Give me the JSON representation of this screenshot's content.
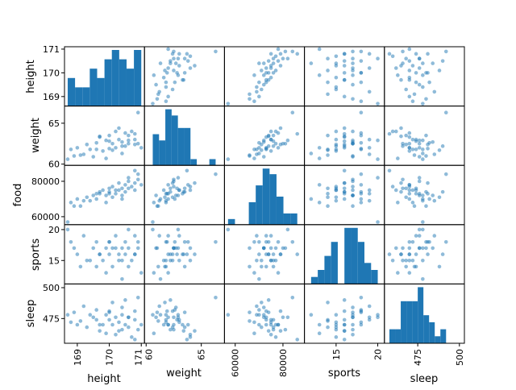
{
  "chart_data": {
    "type": "scatter",
    "title": "",
    "kind": "scatter_matrix",
    "diagonal": "hist",
    "hist_bins": 10,
    "grid": false,
    "color": "#1f77b4",
    "point_alpha": 0.5,
    "variables": [
      "height",
      "weight",
      "food",
      "sports",
      "sleep"
    ],
    "ranges": {
      "height": [
        168.6,
        171.1
      ],
      "weight": [
        59.85,
        67.1
      ],
      "food": [
        55500,
        89000
      ],
      "sports": [
        11.2,
        20.8
      ],
      "sleep": [
        455,
        503
      ]
    },
    "ticks": {
      "height": [
        169,
        170,
        171
      ],
      "weight": [
        60,
        65
      ],
      "food": [
        60000,
        80000
      ],
      "sports": [
        15,
        20
      ],
      "sleep": [
        475,
        500
      ]
    },
    "data": {
      "height": [
        168.7,
        168.8,
        168.9,
        169.0,
        169.2,
        169.3,
        169.5,
        169.6,
        169.6,
        169.7,
        169.8,
        169.9,
        169.9,
        170.0,
        170.0,
        170.1,
        170.1,
        170.2,
        170.3,
        170.3,
        170.4,
        170.4,
        170.5,
        170.5,
        170.6,
        170.6,
        170.7,
        170.8,
        170.8,
        170.9,
        170.9,
        171.0,
        169.4,
        169.7,
        170.2,
        170.6,
        169.1,
        170.0,
        170.4,
        170.8
      ],
      "weight": [
        60.6,
        61.8,
        61.0,
        62.0,
        61.2,
        62.4,
        60.9,
        61.8,
        62.6,
        63.4,
        61.6,
        62.9,
        60.7,
        62.8,
        63.5,
        61.7,
        62.5,
        62.0,
        64.4,
        63.0,
        62.7,
        61.3,
        63.8,
        62.2,
        63.5,
        62.5,
        64.0,
        63.0,
        62.4,
        66.3,
        62.5,
        62.0,
        61.8,
        63.3,
        64.0,
        62.9,
        61.1,
        61.9,
        62.2,
        63.7
      ],
      "food": [
        57000,
        68000,
        66000,
        70000,
        69000,
        71000,
        72000,
        73000,
        70000,
        74000,
        75000,
        72000,
        68000,
        76000,
        74000,
        71000,
        77000,
        73000,
        79000,
        75000,
        72000,
        70000,
        78000,
        74000,
        76000,
        80000,
        77000,
        75000,
        79000,
        84000,
        81000,
        78000,
        69000,
        73000,
        75000,
        82000,
        66000,
        73000,
        76000,
        86000
      ],
      "sports": [
        20,
        18,
        17,
        16,
        19,
        15,
        17,
        14,
        18,
        16,
        15,
        17,
        13,
        16,
        18,
        14,
        17,
        19,
        16,
        15,
        17,
        12,
        18,
        16,
        14,
        17,
        15,
        19,
        16,
        18,
        17,
        13,
        15,
        16,
        17,
        20,
        14,
        18,
        15,
        16
      ],
      "sleep": [
        478,
        472,
        480,
        470,
        485,
        468,
        476,
        474,
        482,
        465,
        470,
        478,
        463,
        474,
        480,
        488,
        470,
        476,
        465,
        472,
        484,
        478,
        470,
        490,
        468,
        476,
        460,
        474,
        481,
        492,
        466,
        470,
        478,
        470,
        462,
        476,
        473,
        481,
        466,
        458
      ]
    }
  }
}
